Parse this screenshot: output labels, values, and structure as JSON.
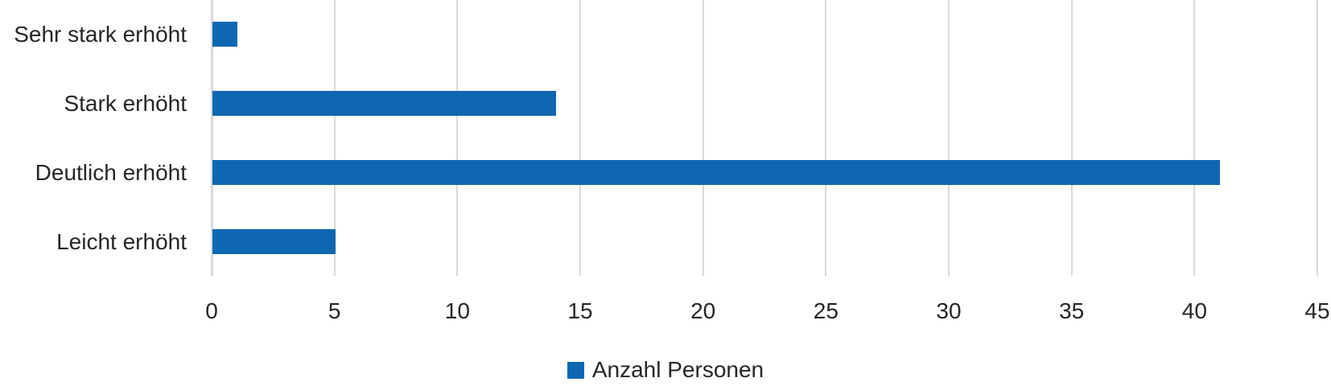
{
  "chart_data": {
    "type": "bar",
    "orientation": "horizontal",
    "title": "",
    "xlabel": "",
    "ylabel": "",
    "categories": [
      "Sehr stark erhöht",
      "Stark erhöht",
      "Deutlich erhöht",
      "Leicht erhöht"
    ],
    "series": [
      {
        "name": "Anzahl Personen",
        "values": [
          1,
          14,
          41,
          5
        ]
      }
    ],
    "xlim": [
      0,
      45
    ],
    "xticks": [
      0,
      5,
      10,
      15,
      20,
      25,
      30,
      35,
      40,
      45
    ],
    "grid": true,
    "legend_position": "bottom",
    "colors": {
      "bar": "#0E68B1",
      "gridline": "#D9D9D9",
      "axis_line": "#D9D9D9",
      "text": "#262626"
    }
  },
  "legend": {
    "label": "Anzahl Personen"
  }
}
